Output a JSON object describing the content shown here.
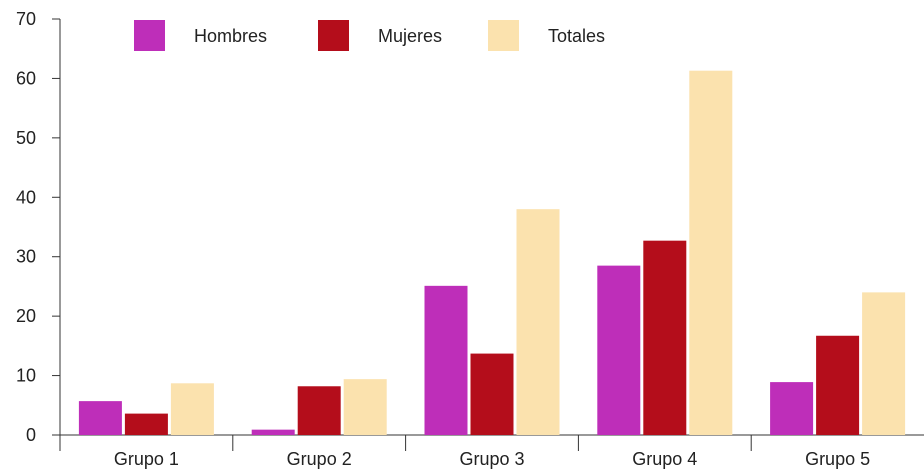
{
  "chart_data": {
    "type": "bar",
    "categories": [
      "Grupo 1",
      "Grupo 2",
      "Grupo 3",
      "Grupo 4",
      "Grupo 5"
    ],
    "series": [
      {
        "name": "Hombres",
        "color": "#BE2EB9",
        "values": [
          5.7,
          0.9,
          25.1,
          28.5,
          8.9
        ]
      },
      {
        "name": "Mujeres",
        "color": "#B40D1B",
        "values": [
          3.6,
          8.2,
          13.7,
          32.7,
          16.7
        ]
      },
      {
        "name": "Totales",
        "color": "#FBE2AE",
        "values": [
          8.7,
          9.4,
          38.0,
          61.3,
          24.0
        ]
      }
    ],
    "title": "",
    "xlabel": "",
    "ylabel": "",
    "ylim": [
      0,
      70
    ],
    "yticks": [
      0,
      10,
      20,
      30,
      40,
      50,
      60,
      70
    ],
    "grid": false,
    "legend": "top"
  }
}
